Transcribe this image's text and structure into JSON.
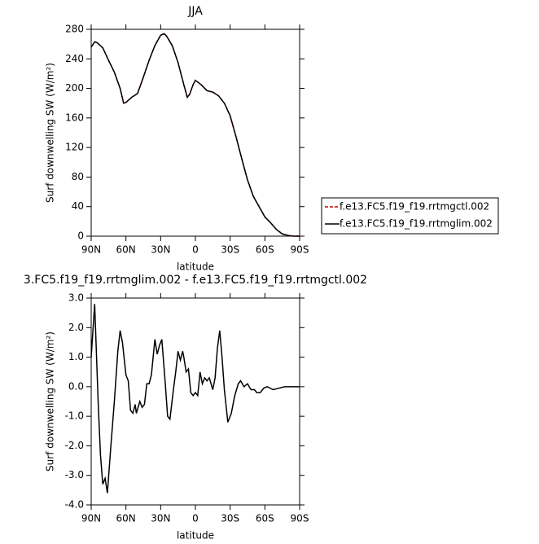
{
  "chart_data": [
    {
      "type": "line",
      "title": "JJA",
      "xlabel": "latitude",
      "ylabel": "Surf downwelling SW (W/m²)",
      "x": [
        90,
        87,
        85,
        80,
        75,
        70,
        65,
        62,
        60,
        55,
        50,
        45,
        40,
        35,
        30,
        27,
        25,
        20,
        15,
        10,
        7,
        5,
        2,
        0,
        -5,
        -10,
        -15,
        -20,
        -25,
        -30,
        -35,
        -40,
        -45,
        -50,
        -55,
        -60,
        -65,
        -70,
        -75,
        -80,
        -85,
        -90
      ],
      "series": [
        {
          "name": "f.e13.FC5.f19_f19.rrtmgctl.002",
          "color": "#cc0000",
          "dash": true,
          "values": [
            256,
            263,
            262,
            255,
            238,
            222,
            200,
            180,
            181,
            188,
            193,
            215,
            238,
            258,
            272,
            274,
            271,
            258,
            235,
            205,
            188,
            192,
            205,
            211,
            205,
            197,
            195,
            190,
            180,
            163,
            135,
            105,
            76,
            54,
            40,
            26,
            18,
            9,
            3,
            1,
            0,
            0
          ]
        },
        {
          "name": "f.e13.FC5.f19_f19.rrtmglim.002",
          "color": "#000000",
          "dash": false,
          "values": [
            256,
            263,
            262,
            255,
            238,
            222,
            200,
            180,
            181,
            188,
            193,
            215,
            238,
            258,
            272,
            274,
            271,
            258,
            235,
            205,
            188,
            192,
            205,
            211,
            205,
            197,
            195,
            190,
            180,
            163,
            135,
            105,
            76,
            54,
            40,
            26,
            18,
            9,
            3,
            1,
            0,
            0
          ]
        }
      ],
      "xlim": [
        90,
        -90
      ],
      "xticks": [
        {
          "value": 90,
          "label": "90N"
        },
        {
          "value": 60,
          "label": "60N"
        },
        {
          "value": 30,
          "label": "30N"
        },
        0,
        {
          "value": -30,
          "label": "30S"
        },
        {
          "value": -60,
          "label": "60S"
        },
        {
          "value": -90,
          "label": "90S"
        }
      ],
      "ylim": [
        0,
        280
      ],
      "yticks": [
        0,
        40,
        80,
        120,
        160,
        200,
        240,
        280
      ],
      "legend": "right"
    },
    {
      "type": "line",
      "title": "3.FC5.f19_f19.rrtmglim.002 - f.e13.FC5.f19_f19.rrtmgctl.002",
      "xlabel": "latitude",
      "ylabel": "Surf downwelling SW (W/m²)",
      "x": [
        90,
        87,
        84,
        82,
        80,
        78,
        76,
        73,
        70,
        67,
        65,
        63,
        60,
        58,
        56,
        54,
        52,
        51,
        48,
        46,
        44,
        42,
        40,
        38,
        35,
        33,
        31,
        29,
        26,
        24,
        22,
        19,
        17,
        15,
        13,
        11,
        10,
        8,
        6,
        4,
        2,
        0,
        -2,
        -4,
        -6,
        -8,
        -10,
        -12,
        -15,
        -17,
        -19,
        -21,
        -23,
        -25,
        -28,
        -31,
        -34,
        -37,
        -39,
        -42,
        -45,
        -48,
        -51,
        -53,
        -56,
        -59,
        -62,
        -67,
        -72,
        -77,
        -90
      ],
      "series": [
        {
          "color": "#000000",
          "dash": false,
          "values": [
            1.0,
            2.8,
            -0.5,
            -2.3,
            -3.3,
            -3.1,
            -3.6,
            -2.0,
            -0.5,
            1.2,
            1.9,
            1.5,
            0.4,
            0.2,
            -0.8,
            -0.9,
            -0.6,
            -0.9,
            -0.5,
            -0.7,
            -0.6,
            0.1,
            0.1,
            0.4,
            1.6,
            1.1,
            1.4,
            1.6,
            0.1,
            -1.0,
            -1.1,
            -0.1,
            0.5,
            1.2,
            0.9,
            1.2,
            1.0,
            0.5,
            0.6,
            -0.2,
            -0.3,
            -0.2,
            -0.3,
            0.5,
            0.1,
            0.3,
            0.2,
            0.3,
            -0.1,
            0.3,
            1.3,
            1.9,
            1.0,
            -0.1,
            -1.2,
            -0.9,
            -0.3,
            0.1,
            0.2,
            0.0,
            0.1,
            -0.1,
            -0.1,
            -0.2,
            -0.2,
            -0.05,
            0.0,
            -0.1,
            -0.05,
            0.0,
            0.0
          ]
        }
      ],
      "xlim": [
        90,
        -90
      ],
      "xticks": [
        {
          "value": 90,
          "label": "90N"
        },
        {
          "value": 60,
          "label": "60N"
        },
        {
          "value": 30,
          "label": "30N"
        },
        0,
        {
          "value": -30,
          "label": "30S"
        },
        {
          "value": -60,
          "label": "60S"
        },
        {
          "value": -90,
          "label": "90S"
        }
      ],
      "ylim": [
        -4.0,
        3.0
      ],
      "yticks": [
        {
          "value": 3,
          "label": "3.0"
        },
        {
          "value": 2,
          "label": "2.0"
        },
        {
          "value": 1,
          "label": "1.0"
        },
        {
          "value": 0,
          "label": "0.0"
        },
        {
          "value": -1,
          "label": "-1.0"
        },
        {
          "value": -2,
          "label": "-2.0"
        },
        {
          "value": -3,
          "label": "-3.0"
        },
        {
          "value": -4,
          "label": "-4.0"
        }
      ]
    }
  ]
}
